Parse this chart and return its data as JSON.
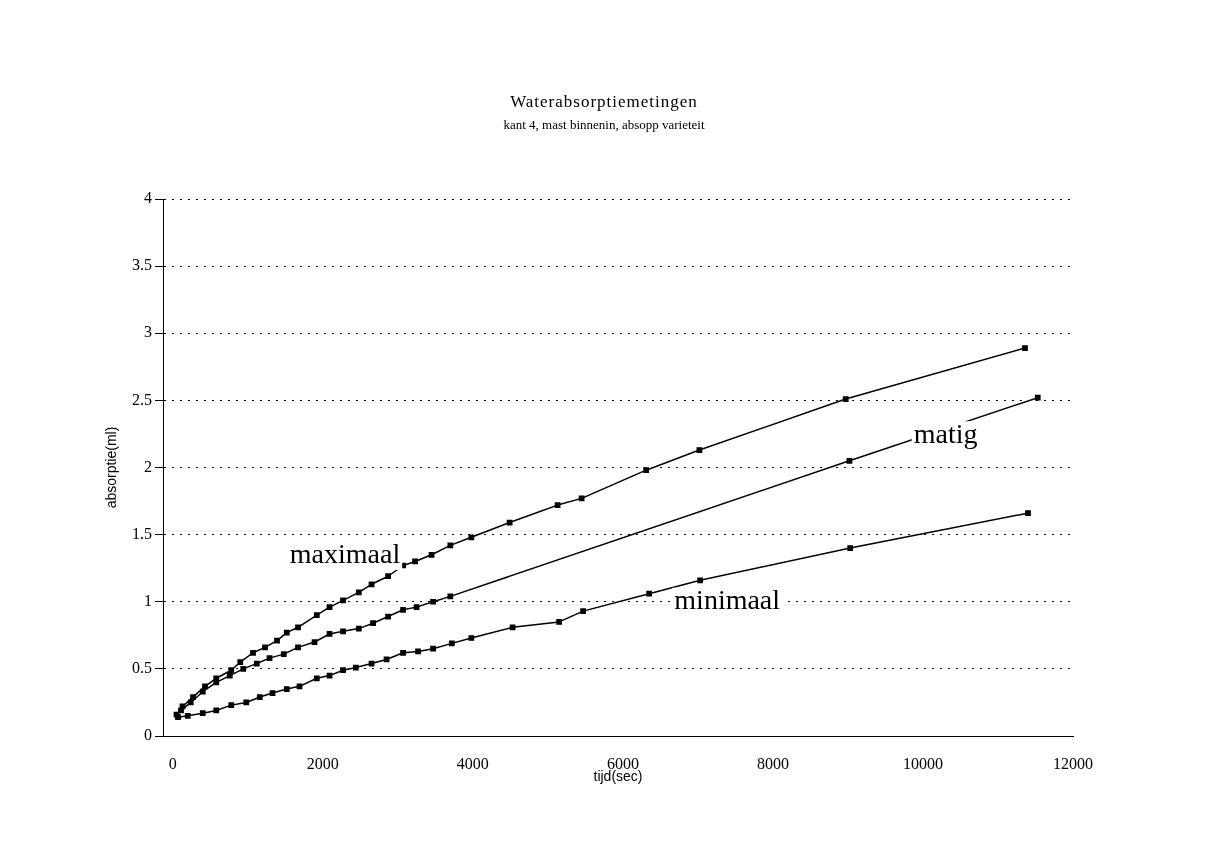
{
  "chart_data": {
    "type": "line",
    "title": "Waterabsorptiemetingen",
    "subtitle": "kant 4, mast binnenin, absopp varieteit",
    "xlabel": "tijd(sec)",
    "ylabel": "absorptie(ml)",
    "xlim": [
      -130,
      12000
    ],
    "xticks": [
      0,
      2000,
      4000,
      6000,
      8000,
      10000,
      12000
    ],
    "ylim": [
      0,
      4
    ],
    "yticks": [
      0,
      0.5,
      1,
      1.5,
      2,
      2.5,
      3,
      3.5,
      4
    ],
    "grid": "y",
    "legend": false,
    "marker": "square",
    "line_style": "solid",
    "series": [
      {
        "name": "maximaal",
        "color": "#000000",
        "x": [
          50,
          130,
          270,
          430,
          580,
          780,
          900,
          1070,
          1230,
          1390,
          1520,
          1670,
          1920,
          2090,
          2270,
          2480,
          2650,
          2870,
          3070,
          3230,
          3450,
          3700,
          3980,
          4490,
          5130,
          5450,
          6310,
          7020,
          8970,
          11360
        ],
        "values": [
          0.16,
          0.22,
          0.29,
          0.37,
          0.43,
          0.49,
          0.55,
          0.62,
          0.66,
          0.71,
          0.77,
          0.81,
          0.9,
          0.96,
          1.01,
          1.07,
          1.13,
          1.19,
          1.27,
          1.3,
          1.35,
          1.42,
          1.48,
          1.59,
          1.72,
          1.77,
          1.98,
          2.13,
          2.51,
          2.89
        ]
      },
      {
        "name": "matig",
        "color": "#000000",
        "x": [
          110,
          240,
          400,
          580,
          760,
          940,
          1120,
          1290,
          1480,
          1670,
          1890,
          2090,
          2270,
          2480,
          2670,
          2870,
          3070,
          3250,
          3470,
          3700,
          9020,
          11530
        ],
        "values": [
          0.19,
          0.25,
          0.33,
          0.4,
          0.45,
          0.5,
          0.54,
          0.58,
          0.61,
          0.66,
          0.7,
          0.76,
          0.78,
          0.8,
          0.84,
          0.89,
          0.94,
          0.96,
          1.0,
          1.04,
          2.05,
          2.52
        ]
      },
      {
        "name": "minimaal",
        "color": "#000000",
        "x": [
          70,
          200,
          400,
          580,
          780,
          980,
          1160,
          1330,
          1520,
          1690,
          1920,
          2090,
          2270,
          2440,
          2650,
          2850,
          3070,
          3270,
          3470,
          3720,
          3980,
          4530,
          5150,
          5470,
          6350,
          7030,
          9030,
          11400
        ],
        "values": [
          0.14,
          0.15,
          0.17,
          0.19,
          0.23,
          0.25,
          0.29,
          0.32,
          0.35,
          0.37,
          0.43,
          0.45,
          0.49,
          0.51,
          0.54,
          0.57,
          0.62,
          0.63,
          0.65,
          0.69,
          0.73,
          0.81,
          0.85,
          0.93,
          1.06,
          1.16,
          1.4,
          1.66
        ]
      }
    ]
  }
}
